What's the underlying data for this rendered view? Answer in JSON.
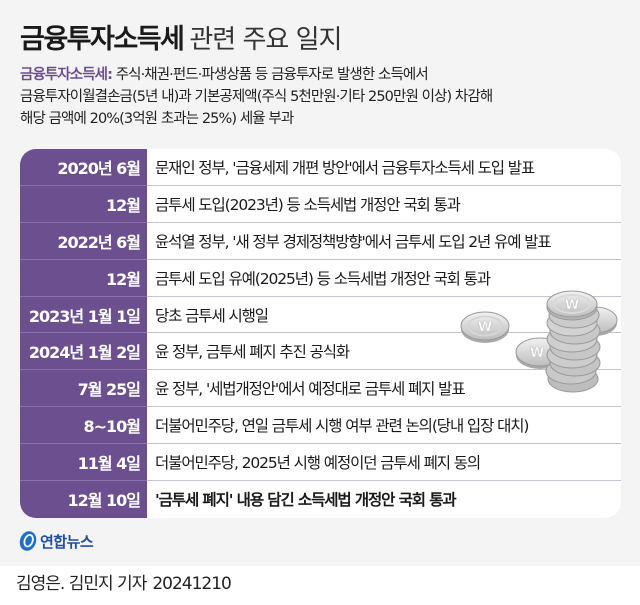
{
  "header": {
    "title_main": "금융투자소득세",
    "title_sub": "관련 주요 일지"
  },
  "description": {
    "term": "금융투자소득세:",
    "line1_rest": " 주식·채권·펀드·파생상품 등 금융투자로 발생한 소득에서",
    "line2": "금융투자이월결손금(5년 내)과 기본공제액(주식 5천만원·기타 250만원 이상) 차감해",
    "line3": "해당 금액에 20%(3억원 초과는 25%) 세율 부과"
  },
  "timeline": [
    {
      "date": "2020년 6월",
      "event": "문재인 정부, '금융세제 개편 방안'에서 금융투자소득세 도입 발표",
      "bold": false
    },
    {
      "date": "12월",
      "event": "금투세 도입(2023년) 등 소득세법 개정안 국회 통과",
      "bold": false
    },
    {
      "date": "2022년 6월",
      "event": "윤석열 정부, '새 정부 경제정책방향'에서 금투세 도입 2년 유예 발표",
      "bold": false
    },
    {
      "date": "12월",
      "event": "금투세 도입 유예(2025년) 등 소득세법 개정안 국회 통과",
      "bold": false
    },
    {
      "date": "2023년 1월 1일",
      "event": "당초 금투세 시행일",
      "bold": false
    },
    {
      "date": "2024년 1월 2일",
      "event": "윤 정부, 금투세 폐지 추진 공식화",
      "bold": false
    },
    {
      "date": "7월 25일",
      "event": "윤 정부, '세법개정안'에서 예정대로 금투세 폐지 발표",
      "bold": false
    },
    {
      "date": "8~10월",
      "event": "더불어민주당, 연일 금투세 시행 여부 관련 논의(당내 입장 대치)",
      "bold": false
    },
    {
      "date": "11월 4일",
      "event": "더불어민주당, 2025년 시행 예정이던 금투세 폐지 동의",
      "bold": false
    },
    {
      "date": "12월 10일",
      "event": "'금투세 폐지' 내용 담긴 소득세법 개정안 국회 통과",
      "bold": true
    }
  ],
  "illustration": {
    "icon": "won-coins-icon",
    "symbol": "₩"
  },
  "logo": {
    "text": "연합뉴스"
  },
  "footer": {
    "credit": "김영은. 김민지 기자",
    "date": "20241210"
  },
  "colors": {
    "accent_purple": "#6b4f8f",
    "panel_bg": "#f4f4f4",
    "logo_blue": "#1f4fa3"
  }
}
